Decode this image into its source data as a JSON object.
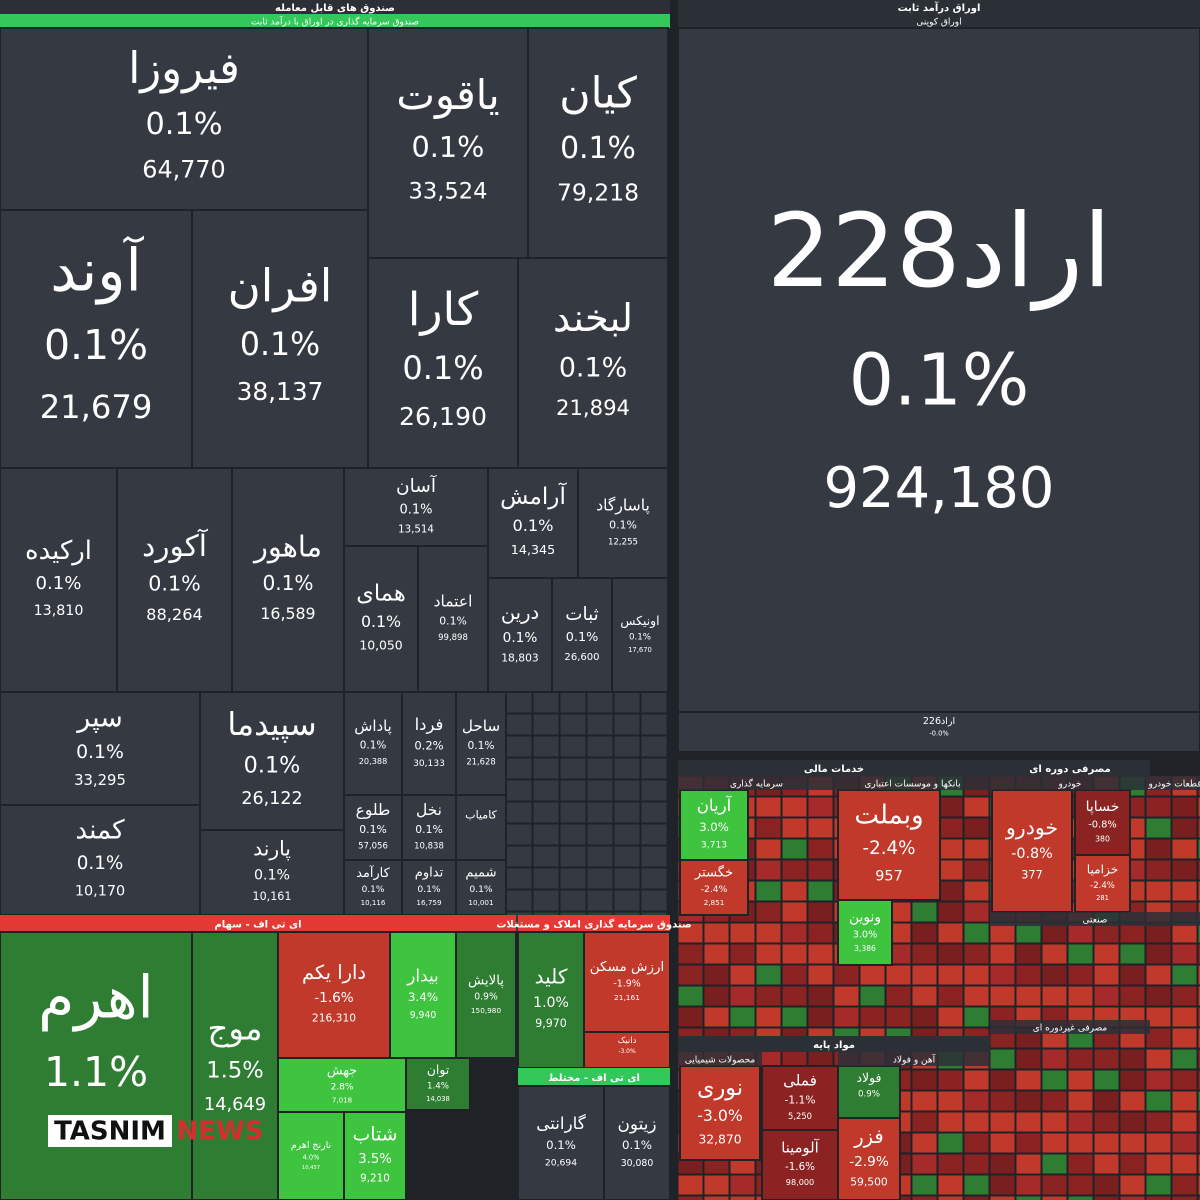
{
  "sections": [
    {
      "title": "صندوق های قابل معامله",
      "subtitle": "صندوق سرمایه گذاری در اوراق با درآمد ثابت",
      "tiles": [
        {
          "name": "فیروزا",
          "change": "0.1%",
          "value": "64,770"
        },
        {
          "name": "یاقوت",
          "change": "0.1%",
          "value": "33,524"
        },
        {
          "name": "کیان",
          "change": "0.1%",
          "value": "79,218"
        },
        {
          "name": "آوند",
          "change": "0.1%",
          "value": "21,679"
        },
        {
          "name": "افران",
          "change": "0.1%",
          "value": "38,137"
        },
        {
          "name": "کارا",
          "change": "0.1%",
          "value": "26,190"
        },
        {
          "name": "لبخند",
          "change": "0.1%",
          "value": "21,894"
        },
        {
          "name": "ارکیده",
          "change": "0.1%",
          "value": "13,810"
        },
        {
          "name": "آکورد",
          "change": "0.1%",
          "value": "88,264"
        },
        {
          "name": "ماهور",
          "change": "0.1%",
          "value": "16,589"
        },
        {
          "name": "آسان",
          "change": "0.1%",
          "value": "13,514"
        },
        {
          "name": "آرامش",
          "change": "0.1%",
          "value": "14,345"
        },
        {
          "name": "پاسارگاد",
          "change": "0.1%",
          "value": "12,255"
        },
        {
          "name": "همای",
          "change": "0.1%",
          "value": "10,050"
        },
        {
          "name": "اعتماد",
          "change": "0.1%",
          "value": "99,898"
        },
        {
          "name": "درین",
          "change": "0.1%",
          "value": "18,803"
        },
        {
          "name": "ثبات",
          "change": "0.1%",
          "value": "26,600"
        },
        {
          "name": "اونیکس",
          "change": "0.1%",
          "value": "17,670"
        },
        {
          "name": "سپر",
          "change": "0.1%",
          "value": "33,295"
        },
        {
          "name": "سپیدما",
          "change": "0.1%",
          "value": "26,122"
        },
        {
          "name": "کمند",
          "change": "0.1%",
          "value": "10,170"
        },
        {
          "name": "پارند",
          "change": "0.1%",
          "value": "10,161"
        },
        {
          "name": "پاداش",
          "change": "0.1%",
          "value": "20,388"
        },
        {
          "name": "فردا",
          "change": "0.2%",
          "value": "30,133"
        },
        {
          "name": "ساحل",
          "change": "0.1%",
          "value": "21,628"
        },
        {
          "name": "طلوع",
          "change": "0.1%",
          "value": "57,056"
        },
        {
          "name": "نخل",
          "change": "0.1%",
          "value": "10,838"
        },
        {
          "name": "کامیاب"
        },
        {
          "name": "کارآمد",
          "change": "0.1%",
          "value": "10,116"
        },
        {
          "name": "تداوم",
          "change": "0.1%",
          "value": "16,759"
        },
        {
          "name": "شمیم",
          "change": "0.1%",
          "value": "10,001"
        }
      ]
    },
    {
      "title": "اوراق درآمد ثابت",
      "subtitle": "اوراق کوپنی",
      "tiles": [
        {
          "name": "اراد228",
          "change": "0.1%",
          "value": "924,180"
        },
        {
          "name": "اراد226",
          "change": "-0.0%"
        }
      ]
    },
    {
      "title": "ای تی اف - سهام",
      "tiles": [
        {
          "name": "اهرم",
          "change": "1.1%"
        },
        {
          "name": "موج",
          "change": "1.5%",
          "value": "14,649"
        },
        {
          "name": "دارا یکم",
          "change": "-1.6%",
          "value": "216,310"
        },
        {
          "name": "بیدار",
          "change": "3.4%",
          "value": "9,940"
        },
        {
          "name": "پالایش",
          "change": "0.9%",
          "value": "150,980"
        },
        {
          "name": "جهش",
          "change": "2.8%",
          "value": "7,018"
        },
        {
          "name": "توان",
          "change": "1.4%",
          "value": "14,038"
        },
        {
          "name": "نارنج اهرم",
          "change": "4.0%",
          "value": "10,457"
        },
        {
          "name": "شتاب",
          "change": "3.5%",
          "value": "9,210"
        }
      ]
    },
    {
      "title": "صندوق سرمایه گذاری املاک و مستغلات",
      "tiles": [
        {
          "name": "کلید",
          "change": "1.0%",
          "value": "9,970"
        },
        {
          "name": "ارزش مسکن",
          "change": "-1.9%",
          "value": "21,161"
        },
        {
          "name": "دانیک",
          "change": "-3.0%"
        }
      ]
    },
    {
      "title": "ای تی اف - مختلط",
      "tiles": [
        {
          "name": "گارانتی",
          "change": "0.1%",
          "value": "20,694"
        },
        {
          "name": "زیتون",
          "change": "0.1%",
          "value": "30,080"
        }
      ]
    },
    {
      "title": "خدمات مالی",
      "tiles": [
        {
          "name": "آریان",
          "change": "3.0%",
          "value": "3,713"
        },
        {
          "name": "خگستر",
          "change": "-2.4%",
          "value": "2,851"
        },
        {
          "name": "وبملت",
          "change": "-2.4%",
          "value": "957"
        },
        {
          "name": "ونوین",
          "change": "3.0%",
          "value": "3,386"
        }
      ]
    },
    {
      "title": "مصرفی دوره ای",
      "tiles": [
        {
          "name": "خودرو",
          "change": "-0.8%",
          "value": "377"
        },
        {
          "name": "خساپا",
          "change": "-0.8%",
          "value": "380"
        },
        {
          "name": "خزامیا",
          "change": "-2.4%",
          "value": "281"
        }
      ]
    },
    {
      "title": "مواد پایه",
      "tiles": [
        {
          "name": "نوری",
          "change": "-3.0%",
          "value": "32,870"
        },
        {
          "name": "فملی",
          "change": "-1.1%",
          "value": "5,250"
        },
        {
          "name": "فولاد",
          "change": "0.9%"
        },
        {
          "name": "فزر",
          "change": "-2.9%",
          "value": "59,500"
        },
        {
          "name": "آلومینا",
          "change": "-1.6%",
          "value": "98,000"
        }
      ]
    }
  ],
  "subheaders": [
    "سرمایه گذاری",
    "بانکها و موسسات اعتباری",
    "خودرو",
    "قطعات خودرو",
    "صنعتی",
    "مصرفی غیردوره ای",
    "محصولات شیمیایی",
    "آهن و فولاد"
  ],
  "watermark": {
    "brand": "TASNIM",
    "sub": "NEWS"
  }
}
